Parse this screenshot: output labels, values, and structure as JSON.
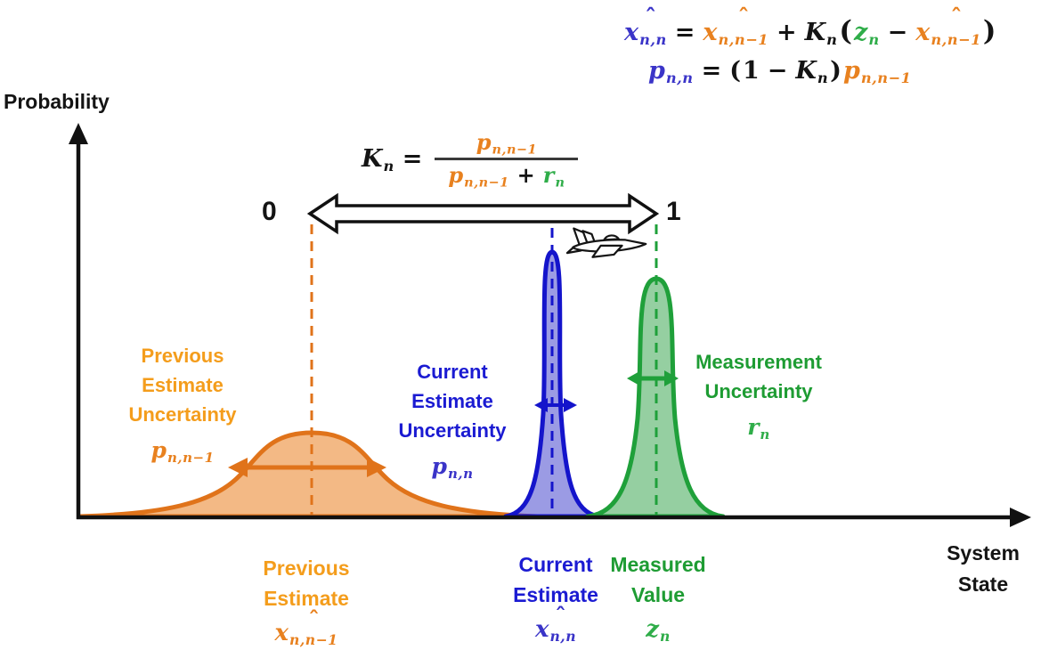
{
  "title": "Kalman filter state update diagram",
  "colors": {
    "black": "#141414",
    "math_blue": "#3a34c8",
    "label_blue": "#1b1bd2",
    "math_orange": "#e8811f",
    "label_orange": "#f49d1c",
    "math_green": "#2fad49",
    "label_green": "#1e9c33",
    "curve_orange": "#e0731a",
    "curve_blue": "#1414cb",
    "curve_green": "#1fa03a",
    "fraction_bar": "#3a3a3a"
  },
  "equations": {
    "state_update": [
      {
        "t": "x",
        "hat": true,
        "sub": "n,n",
        "c": "math_blue",
        "i": true
      },
      {
        "t": "=",
        "c": "black",
        "op": true
      },
      {
        "t": "x",
        "hat": true,
        "sub": "n,n−1",
        "c": "math_orange",
        "i": true
      },
      {
        "t": "+",
        "c": "black",
        "op": true
      },
      {
        "t": "K",
        "sub": "n",
        "c": "black",
        "i": true
      },
      {
        "t": "(",
        "c": "black",
        "big": true
      },
      {
        "t": "z",
        "sub": "n",
        "c": "math_green",
        "i": true
      },
      {
        "t": "−",
        "c": "black",
        "op": true
      },
      {
        "t": "x",
        "hat": true,
        "sub": "n,n−1",
        "c": "math_orange",
        "i": true
      },
      {
        "t": ")",
        "c": "black",
        "big": true
      }
    ],
    "covariance_update": [
      {
        "t": "p",
        "sub": "n,n",
        "c": "math_blue",
        "i": true
      },
      {
        "t": "=",
        "c": "black",
        "op": true
      },
      {
        "t": "(",
        "c": "black"
      },
      {
        "t": "1",
        "c": "black"
      },
      {
        "t": "−",
        "c": "black",
        "op": true
      },
      {
        "t": "K",
        "sub": "n",
        "c": "black",
        "i": true
      },
      {
        "t": ")",
        "c": "black"
      },
      {
        "t": "p",
        "sub": "n,n−1",
        "c": "math_orange",
        "i": true
      }
    ],
    "kalman_gain": {
      "lhs": [
        {
          "t": "K",
          "sub": "n",
          "c": "black",
          "i": true
        },
        {
          "t": "=",
          "c": "black",
          "op": true
        }
      ],
      "numerator": [
        {
          "t": "p",
          "sub": "n,n−1",
          "c": "math_orange",
          "i": true
        }
      ],
      "denominator": [
        {
          "t": "p",
          "sub": "n,n−1",
          "c": "math_orange",
          "i": true
        },
        {
          "t": "+",
          "c": "black",
          "op": true
        },
        {
          "t": "r",
          "sub": "n",
          "c": "math_green",
          "i": true
        }
      ]
    }
  },
  "axes": {
    "y_label": "Probability",
    "x_label": [
      "System",
      "State"
    ]
  },
  "gain_scale": {
    "min": "0",
    "max": "1"
  },
  "distributions": {
    "previous": {
      "annotation": [
        "Previous",
        "Estimate",
        "Uncertainty"
      ],
      "annotation_symbol": [
        {
          "t": "p",
          "sub": "n,n−1",
          "c": "math_orange",
          "i": true
        }
      ],
      "axis_label": [
        "Previous",
        "Estimate"
      ],
      "axis_symbol": [
        {
          "t": "x",
          "hat": true,
          "sub": "n,n−1",
          "c": "math_orange",
          "i": true
        }
      ]
    },
    "current": {
      "annotation": [
        "Current",
        "Estimate",
        "Uncertainty"
      ],
      "annotation_symbol": [
        {
          "t": "p",
          "sub": "n,n",
          "c": "math_blue",
          "i": true
        }
      ],
      "axis_label": [
        "Current",
        "Estimate"
      ],
      "axis_symbol": [
        {
          "t": "x",
          "hat": true,
          "sub": "n,n",
          "c": "math_blue",
          "i": true
        }
      ]
    },
    "measurement": {
      "annotation": [
        "Measurement",
        "Uncertainty"
      ],
      "annotation_symbol": [
        {
          "t": "r",
          "sub": "n",
          "c": "math_green",
          "i": true
        }
      ],
      "axis_label": [
        "Measured",
        "Value"
      ],
      "axis_symbol": [
        {
          "t": "z",
          "sub": "n",
          "c": "math_green",
          "i": true
        }
      ]
    }
  },
  "icons": {
    "airplane": "fighter-jet"
  }
}
